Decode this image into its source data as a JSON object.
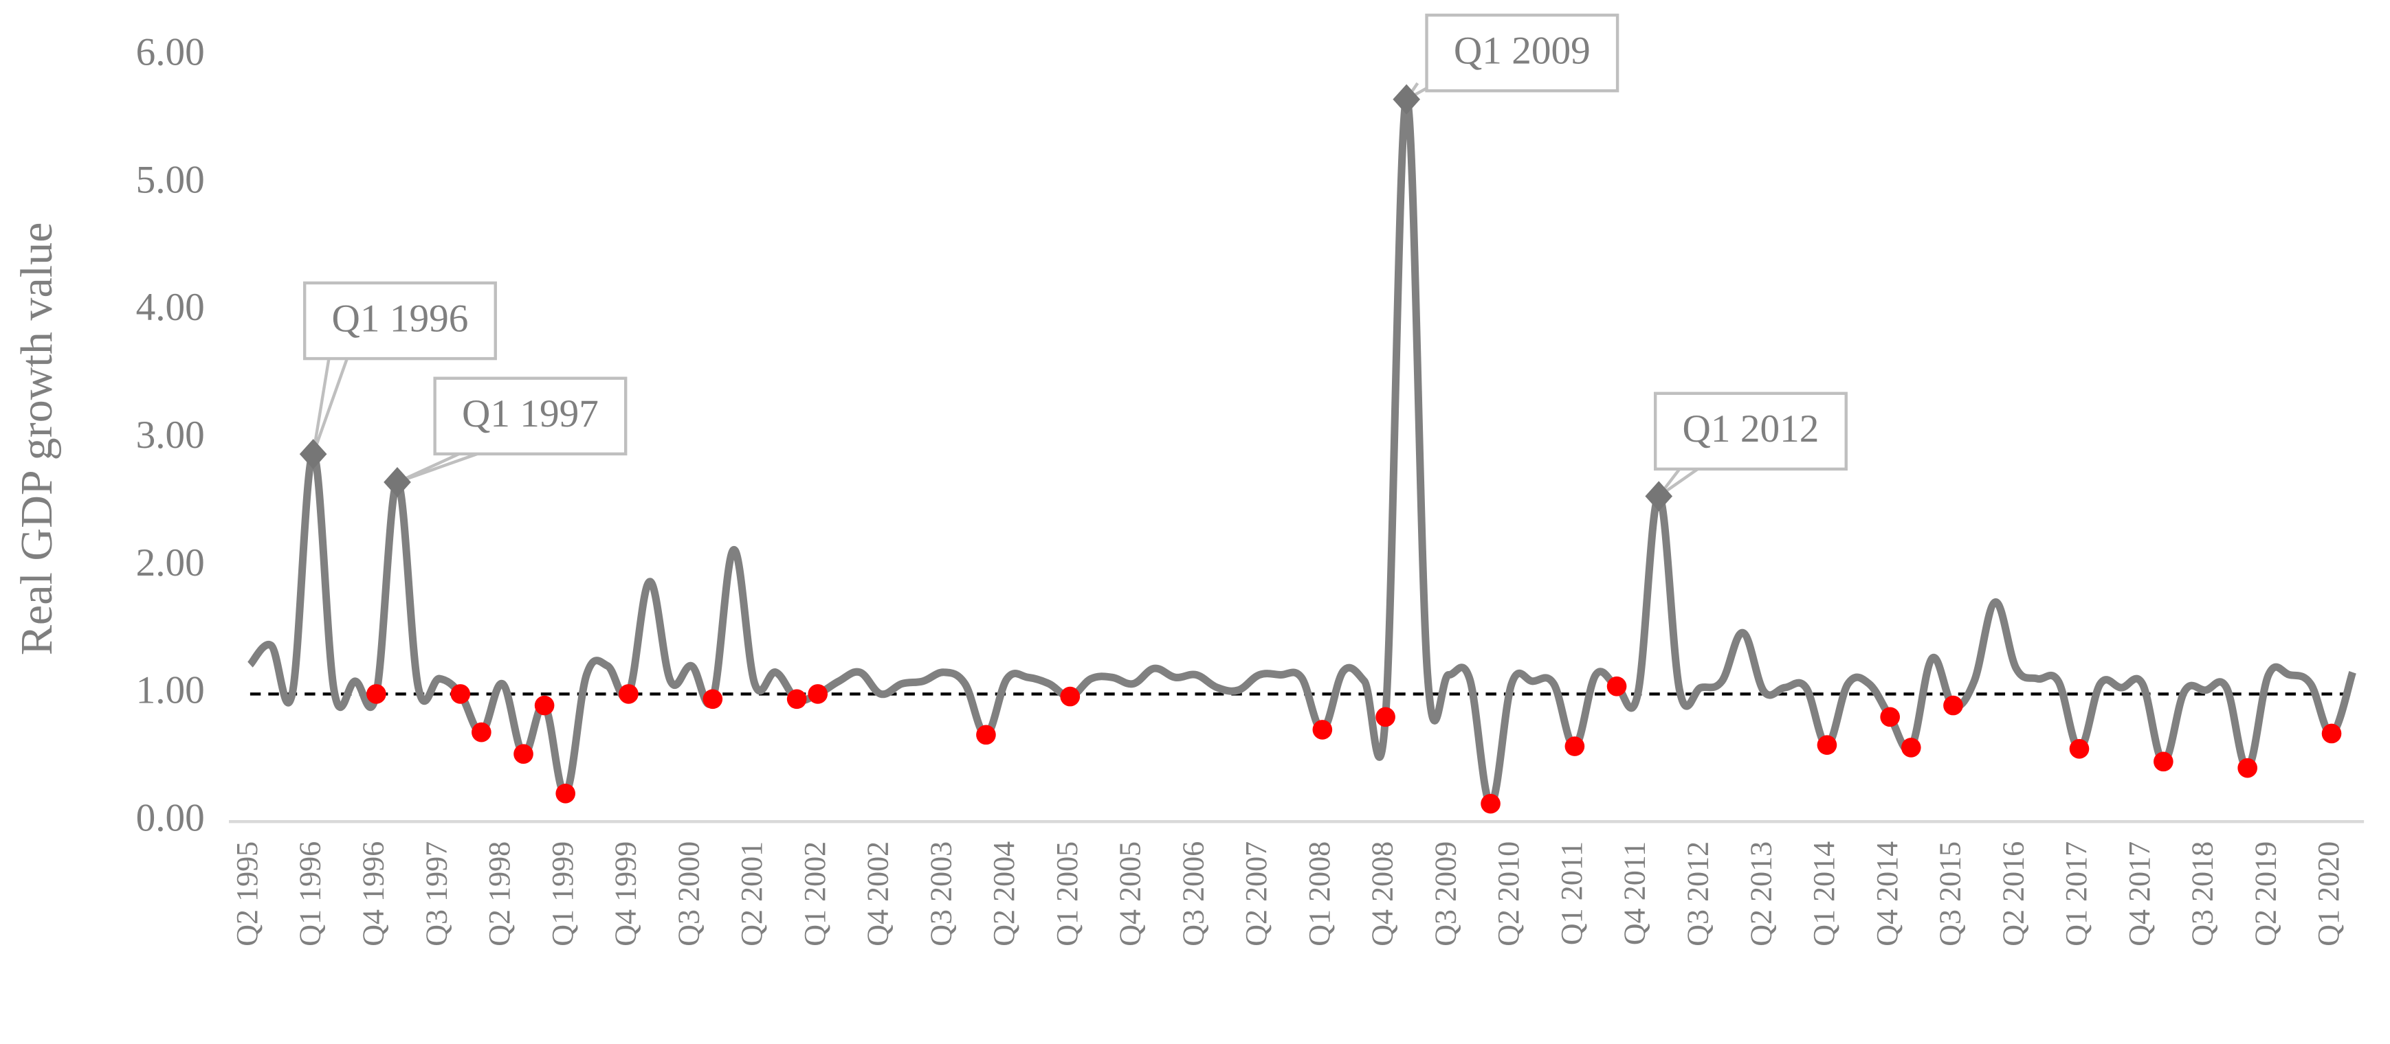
{
  "chart_data": {
    "type": "line",
    "y_label": "Real GDP growth value",
    "categories": [
      "Q2 1995",
      null,
      null,
      "Q1 1996",
      null,
      null,
      "Q4 1996",
      null,
      null,
      "Q3 1997",
      null,
      null,
      "Q2 1998",
      null,
      null,
      "Q1 1999",
      null,
      null,
      "Q4 1999",
      null,
      null,
      "Q3 2000",
      null,
      null,
      "Q2 2001",
      null,
      null,
      "Q1 2002",
      null,
      null,
      "Q4 2002",
      null,
      null,
      "Q3 2003",
      null,
      null,
      "Q2 2004",
      null,
      null,
      "Q1 2005",
      null,
      null,
      "Q4 2005",
      null,
      null,
      "Q3 2006",
      null,
      null,
      "Q2 2007",
      null,
      null,
      "Q1 2008",
      null,
      null,
      "Q4 2008",
      null,
      null,
      "Q3 2009",
      null,
      null,
      "Q2 2010",
      null,
      null,
      "Q1 2011",
      null,
      null,
      "Q4 2011",
      null,
      null,
      "Q3 2012",
      null,
      null,
      "Q2 2013",
      null,
      null,
      "Q1 2014",
      null,
      null,
      "Q4 2014",
      null,
      null,
      "Q3 2015",
      null,
      null,
      "Q2 2016",
      null,
      null,
      "Q1 2017",
      null,
      null,
      "Q4 2017",
      null,
      null,
      "Q3 2018",
      null,
      null,
      "Q2 2019",
      null,
      null,
      "Q1 2020",
      null
    ],
    "series": [
      {
        "color": "#808080",
        "values": [
          1.23,
          1.38,
          1.0,
          2.88,
          1.02,
          1.1,
          1.0,
          2.66,
          1.05,
          1.12,
          1.0,
          0.7,
          1.08,
          0.53,
          0.91,
          0.22,
          1.15,
          1.22,
          1.0,
          1.88,
          1.1,
          1.22,
          0.96,
          2.13,
          1.08,
          1.17,
          0.96,
          1.0,
          1.1,
          1.17,
          1.0,
          1.08,
          1.1,
          1.17,
          1.08,
          0.68,
          1.12,
          1.13,
          1.08,
          0.98,
          1.12,
          1.13,
          1.08,
          1.2,
          1.13,
          1.15,
          1.05,
          1.03,
          1.15,
          1.15,
          1.13,
          0.72,
          1.18,
          1.1,
          0.82,
          5.66,
          1.15,
          1.15,
          1.12,
          0.14,
          1.08,
          1.1,
          1.08,
          0.59,
          1.15,
          1.06,
          1.0,
          2.55,
          1.02,
          1.05,
          1.1,
          1.48,
          1.02,
          1.05,
          1.05,
          0.6,
          1.08,
          1.08,
          0.82,
          0.58,
          1.28,
          0.91,
          1.1,
          1.72,
          1.2,
          1.12,
          1.1,
          0.57,
          1.08,
          1.05,
          1.08,
          0.47,
          1.02,
          1.03,
          1.05,
          0.42,
          1.15,
          1.15,
          1.08,
          0.69,
          1.17
        ]
      },
      {
        "color": "#ff0000",
        "marker": "circle",
        "line": false,
        "values": [
          null,
          null,
          null,
          null,
          null,
          null,
          1.0,
          null,
          null,
          null,
          1.0,
          0.7,
          null,
          0.53,
          0.91,
          0.22,
          null,
          null,
          1.0,
          null,
          null,
          null,
          0.96,
          null,
          null,
          null,
          0.96,
          1.0,
          null,
          null,
          null,
          null,
          null,
          null,
          null,
          0.68,
          null,
          null,
          null,
          0.98,
          null,
          null,
          null,
          null,
          null,
          null,
          null,
          null,
          null,
          null,
          null,
          0.72,
          null,
          null,
          0.82,
          null,
          null,
          null,
          null,
          0.14,
          null,
          null,
          null,
          0.59,
          null,
          1.06,
          null,
          null,
          null,
          null,
          null,
          null,
          null,
          null,
          null,
          0.6,
          null,
          null,
          0.82,
          0.58,
          null,
          0.91,
          null,
          null,
          null,
          null,
          null,
          0.57,
          null,
          null,
          null,
          0.47,
          null,
          null,
          null,
          0.42,
          null,
          null,
          null,
          0.69,
          null
        ]
      }
    ],
    "annotations": [
      {
        "text": "Q1 1996",
        "index": 3
      },
      {
        "text": "Q1 1997",
        "index": 7
      },
      {
        "text": "Q1 2009",
        "index": 55
      },
      {
        "text": "Q1 2012",
        "index": 67
      }
    ],
    "reference_line": 1,
    "ylim": [
      0,
      6
    ],
    "yticks": [
      {
        "value": 0,
        "label": "0.00"
      },
      {
        "value": 1,
        "label": "1.00"
      },
      {
        "value": 2,
        "label": "2.00"
      },
      {
        "value": 3,
        "label": "3.00"
      },
      {
        "value": 4,
        "label": "4.00"
      },
      {
        "value": 5,
        "label": "5.00"
      },
      {
        "value": 6,
        "label": "6.00"
      }
    ]
  }
}
